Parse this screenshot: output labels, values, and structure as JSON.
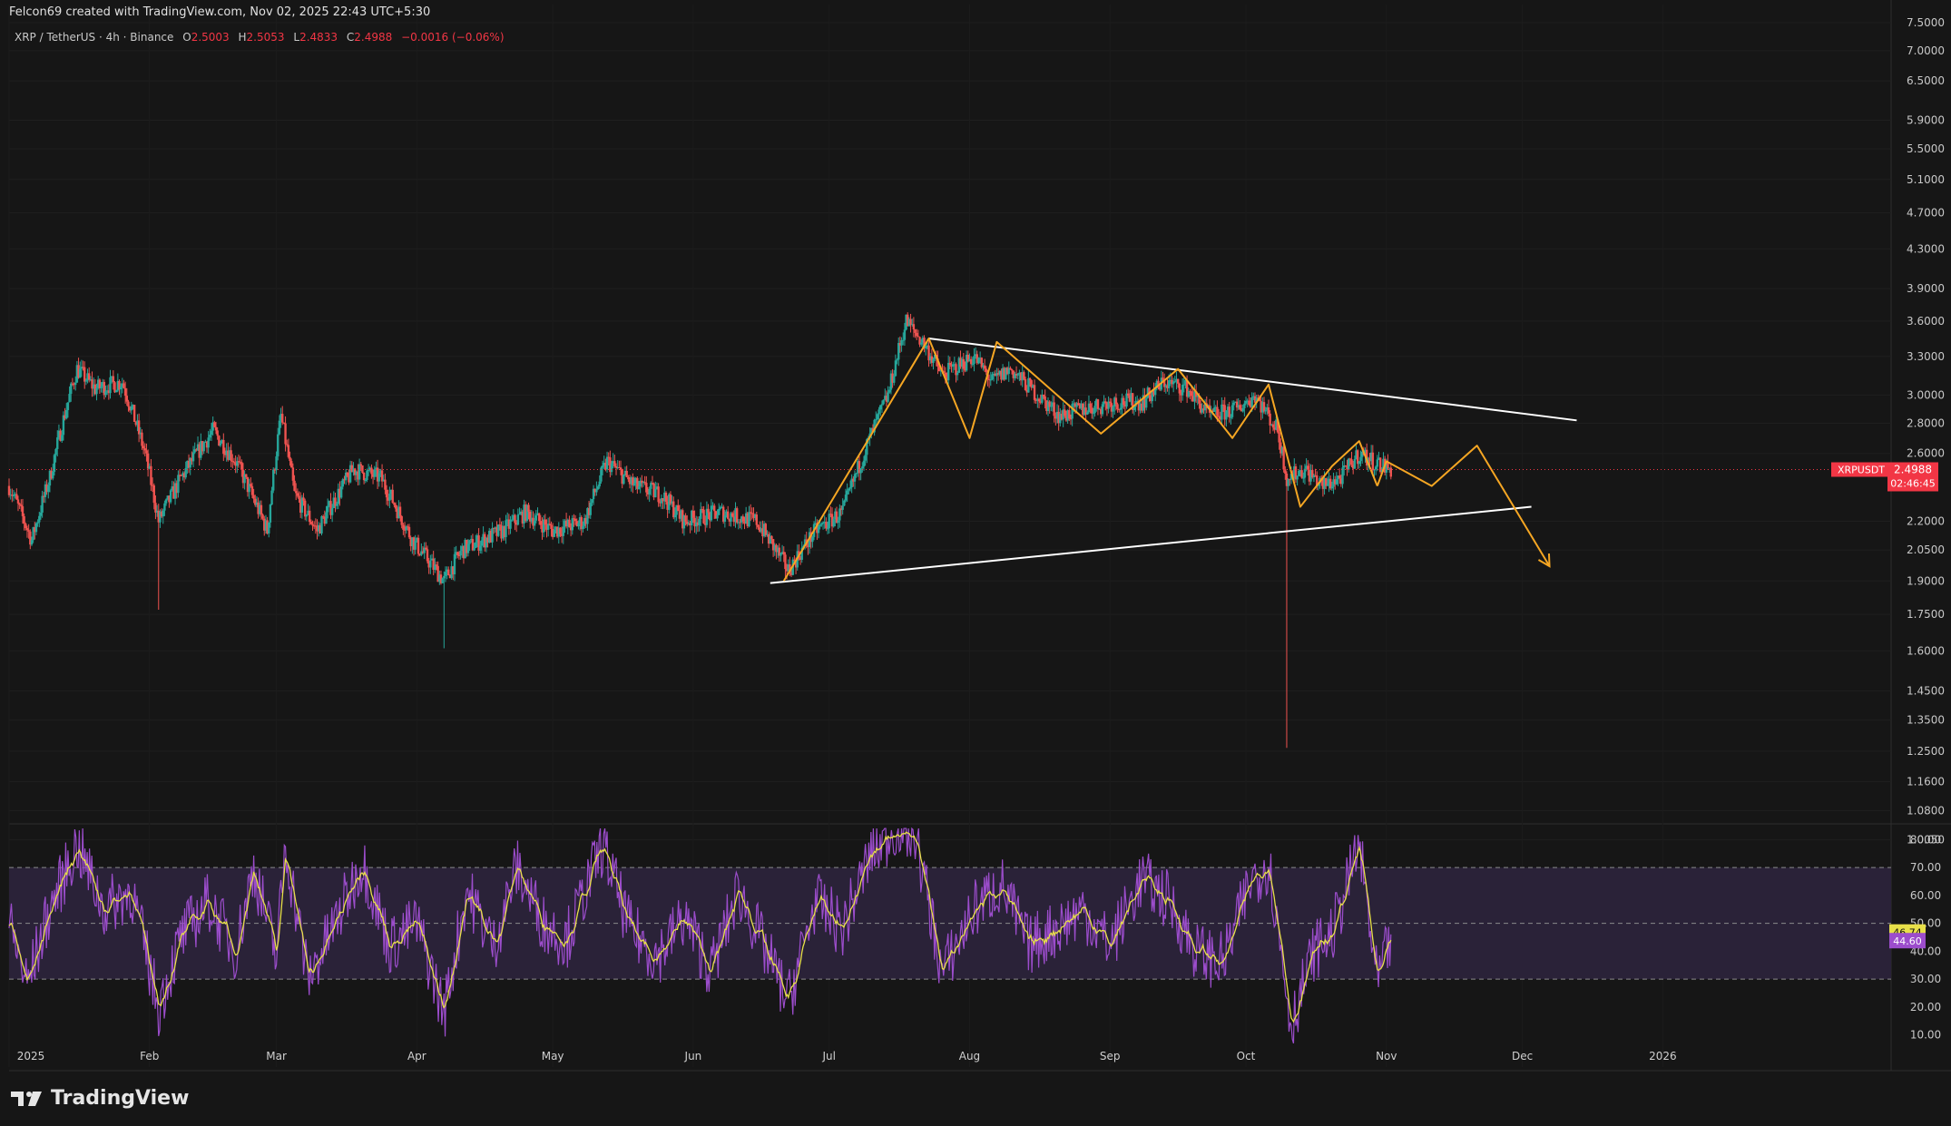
{
  "header": {
    "text": "Felcon69 created with TradingView.com, Nov 02, 2025 22:43 UTC+5:30"
  },
  "legend": {
    "symbol": "XRP / TetherUS · 4h · Binance",
    "o_label": "O",
    "o_value": "2.5003",
    "h_label": "H",
    "h_value": "2.5053",
    "l_label": "L",
    "l_value": "2.4833",
    "c_label": "C",
    "c_value": "2.4988",
    "change": "−0.0016 (−0.06%)"
  },
  "brand": {
    "name": "TradingView",
    "icon": "tradingview-logo-icon"
  },
  "colors": {
    "background": "#161616",
    "up": "#26a69a",
    "down": "#ef5350",
    "trendline": "#ffffff",
    "projection": "#f5a623",
    "rsi_line": "#9c4dcc",
    "rsi_ma": "#e8e049",
    "rsi_band": "#2a2238",
    "price_badge": "#f23645",
    "rsi_badge_ma": "#e8e049",
    "rsi_badge": "#9c4dcc"
  },
  "chart_data": [
    {
      "type": "candlestick",
      "title": "XRP / TetherUS · 4h · Binance",
      "scale": "log",
      "ylim": [
        1.05,
        7.5
      ],
      "y_ticks": [
        "7.5000",
        "7.0000",
        "6.5000",
        "5.9000",
        "5.5000",
        "5.1000",
        "4.7000",
        "4.3000",
        "3.9000",
        "3.6000",
        "3.3000",
        "3.0000",
        "2.8000",
        "2.6000",
        "2.2000",
        "2.0500",
        "1.9000",
        "1.7500",
        "1.6000",
        "1.4500",
        "1.3500",
        "1.2500",
        "1.1600",
        "1.0800",
        "1.0050"
      ],
      "x_ticks": [
        "2025",
        "Feb",
        "Mar",
        "Apr",
        "May",
        "Jun",
        "Jul",
        "Aug",
        "Sep",
        "Oct",
        "Nov",
        "Dec",
        "2026"
      ],
      "x_range": [
        "2025-01-01",
        "2026-02-20"
      ],
      "price_path": [
        [
          "2025-01-01",
          2.4
        ],
        [
          "2025-01-06",
          2.1
        ],
        [
          "2025-01-10",
          2.45
        ],
        [
          "2025-01-16",
          3.2
        ],
        [
          "2025-01-20",
          3.05
        ],
        [
          "2025-01-26",
          3.1
        ],
        [
          "2025-01-31",
          2.6
        ],
        [
          "2025-02-03",
          2.2
        ],
        [
          "2025-02-08",
          2.45
        ],
        [
          "2025-02-15",
          2.75
        ],
        [
          "2025-02-20",
          2.55
        ],
        [
          "2025-02-27",
          2.15
        ],
        [
          "2025-03-02",
          2.85
        ],
        [
          "2025-03-05",
          2.35
        ],
        [
          "2025-03-10",
          2.15
        ],
        [
          "2025-03-18",
          2.5
        ],
        [
          "2025-03-24",
          2.45
        ],
        [
          "2025-03-31",
          2.1
        ],
        [
          "2025-04-07",
          1.9
        ],
        [
          "2025-04-11",
          2.05
        ],
        [
          "2025-04-20",
          2.15
        ],
        [
          "2025-04-25",
          2.25
        ],
        [
          "2025-05-01",
          2.15
        ],
        [
          "2025-05-08",
          2.2
        ],
        [
          "2025-05-13",
          2.55
        ],
        [
          "2025-05-19",
          2.4
        ],
        [
          "2025-05-25",
          2.35
        ],
        [
          "2025-05-30",
          2.2
        ],
        [
          "2025-06-07",
          2.25
        ],
        [
          "2025-06-15",
          2.2
        ],
        [
          "2025-06-22",
          1.95
        ],
        [
          "2025-06-28",
          2.15
        ],
        [
          "2025-07-04",
          2.25
        ],
        [
          "2025-07-10",
          2.7
        ],
        [
          "2025-07-14",
          3.0
        ],
        [
          "2025-07-18",
          3.6
        ],
        [
          "2025-07-22",
          3.4
        ],
        [
          "2025-07-26",
          3.15
        ],
        [
          "2025-08-02",
          3.3
        ],
        [
          "2025-08-06",
          3.1
        ],
        [
          "2025-08-10",
          3.2
        ],
        [
          "2025-08-16",
          3.0
        ],
        [
          "2025-08-21",
          2.85
        ],
        [
          "2025-08-26",
          2.9
        ],
        [
          "2025-09-02",
          2.95
        ],
        [
          "2025-09-08",
          2.95
        ],
        [
          "2025-09-13",
          3.1
        ],
        [
          "2025-09-18",
          3.05
        ],
        [
          "2025-09-23",
          2.85
        ],
        [
          "2025-09-29",
          2.9
        ],
        [
          "2025-10-03",
          3.0
        ],
        [
          "2025-10-08",
          2.75
        ],
        [
          "2025-10-10",
          2.45
        ],
        [
          "2025-10-14",
          2.5
        ],
        [
          "2025-10-18",
          2.4
        ],
        [
          "2025-10-22",
          2.45
        ],
        [
          "2025-10-26",
          2.6
        ],
        [
          "2025-10-29",
          2.55
        ],
        [
          "2025-11-02",
          2.4988
        ]
      ],
      "notable_wicks": [
        {
          "date": "2025-02-03",
          "low": 1.77
        },
        {
          "date": "2025-04-07",
          "low": 1.61
        },
        {
          "date": "2025-10-10",
          "low": 1.26
        },
        {
          "date": "2025-07-18",
          "high": 3.66
        }
      ],
      "annotations": [
        {
          "kind": "trendline",
          "name": "upper resistance",
          "points": [
            [
              "2025-07-23",
              3.45
            ],
            [
              "2025-12-13",
              2.82
            ]
          ]
        },
        {
          "kind": "trendline",
          "name": "lower support",
          "points": [
            [
              "2025-06-18",
              1.89
            ],
            [
              "2025-12-03",
              2.28
            ]
          ]
        },
        {
          "kind": "path",
          "name": "wave count",
          "points": [
            [
              "2025-06-21",
              1.9
            ],
            [
              "2025-07-23",
              3.45
            ],
            [
              "2025-08-01",
              2.7
            ],
            [
              "2025-08-07",
              3.42
            ],
            [
              "2025-08-30",
              2.73
            ],
            [
              "2025-09-16",
              3.2
            ],
            [
              "2025-09-28",
              2.7
            ],
            [
              "2025-10-06",
              3.08
            ],
            [
              "2025-10-13",
              2.28
            ],
            [
              "2025-10-20",
              2.52
            ],
            [
              "2025-10-26",
              2.68
            ],
            [
              "2025-10-30",
              2.4
            ]
          ]
        },
        {
          "kind": "projection",
          "name": "forecast path",
          "points": [
            [
              "2025-10-30",
              2.4
            ],
            [
              "2025-11-01",
              2.55
            ],
            [
              "2025-11-11",
              2.4
            ],
            [
              "2025-11-21",
              2.65
            ],
            [
              "2025-12-07",
              1.97
            ]
          ]
        }
      ],
      "last_price": {
        "label": "XRPUSDT",
        "value": "2.4988",
        "countdown": "02:46:45"
      }
    },
    {
      "type": "line",
      "title": "",
      "ylim": [
        5,
        85
      ],
      "y_ticks": [
        "80.00",
        "70.00",
        "60.00",
        "50.00",
        "40.00",
        "30.00",
        "20.00",
        "10.00"
      ],
      "bands": {
        "upper": 70,
        "middle": 50,
        "lower": 30
      },
      "rsi_path": [
        [
          "2025-01-01",
          50
        ],
        [
          "2025-01-05",
          28
        ],
        [
          "2025-01-10",
          55
        ],
        [
          "2025-01-16",
          78
        ],
        [
          "2025-01-22",
          55
        ],
        [
          "2025-01-28",
          62
        ],
        [
          "2025-02-03",
          20
        ],
        [
          "2025-02-08",
          45
        ],
        [
          "2025-02-14",
          58
        ],
        [
          "2025-02-20",
          40
        ],
        [
          "2025-02-24",
          70
        ],
        [
          "2025-03-01",
          38
        ],
        [
          "2025-03-03",
          78
        ],
        [
          "2025-03-08",
          30
        ],
        [
          "2025-03-14",
          50
        ],
        [
          "2025-03-20",
          72
        ],
        [
          "2025-03-26",
          42
        ],
        [
          "2025-04-01",
          50
        ],
        [
          "2025-04-07",
          18
        ],
        [
          "2025-04-12",
          62
        ],
        [
          "2025-04-18",
          42
        ],
        [
          "2025-04-23",
          70
        ],
        [
          "2025-04-29",
          50
        ],
        [
          "2025-05-04",
          44
        ],
        [
          "2025-05-12",
          78
        ],
        [
          "2025-05-18",
          48
        ],
        [
          "2025-05-24",
          38
        ],
        [
          "2025-05-30",
          52
        ],
        [
          "2025-06-05",
          33
        ],
        [
          "2025-06-11",
          62
        ],
        [
          "2025-06-17",
          40
        ],
        [
          "2025-06-22",
          22
        ],
        [
          "2025-06-28",
          58
        ],
        [
          "2025-07-04",
          48
        ],
        [
          "2025-07-10",
          74
        ],
        [
          "2025-07-16",
          85
        ],
        [
          "2025-07-20",
          82
        ],
        [
          "2025-07-26",
          32
        ],
        [
          "2025-08-02",
          55
        ],
        [
          "2025-08-08",
          64
        ],
        [
          "2025-08-14",
          42
        ],
        [
          "2025-08-20",
          48
        ],
        [
          "2025-08-26",
          55
        ],
        [
          "2025-09-01",
          42
        ],
        [
          "2025-09-08",
          66
        ],
        [
          "2025-09-14",
          58
        ],
        [
          "2025-09-20",
          40
        ],
        [
          "2025-09-26",
          36
        ],
        [
          "2025-10-02",
          65
        ],
        [
          "2025-10-06",
          72
        ],
        [
          "2025-10-11",
          14
        ],
        [
          "2025-10-16",
          40
        ],
        [
          "2025-10-20",
          46
        ],
        [
          "2025-10-26",
          78
        ],
        [
          "2025-10-30",
          28
        ],
        [
          "2025-11-02",
          44.6
        ]
      ],
      "value": "44.60",
      "ma_value": "46.74"
    }
  ]
}
